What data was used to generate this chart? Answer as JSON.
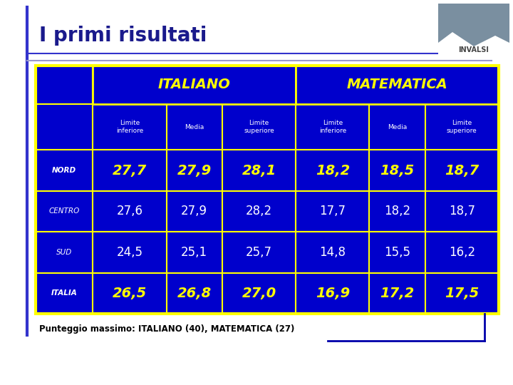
{
  "title": "I primi risultati",
  "subtitle": "Punteggio massimo: ITALIANO (40), MATEMATICA (27)",
  "col_groups": [
    "ITALIANO",
    "MATEMATICA"
  ],
  "sub_cols": [
    "Limite\ninferiore",
    "Media",
    "Limite\nsuperiore",
    "Limite\ninferiore",
    "Media",
    "Limite\nsuperiore"
  ],
  "rows": [
    {
      "label": "NORD",
      "values": [
        "27,7",
        "27,9",
        "28,1",
        "18,2",
        "18,5",
        "18,7"
      ],
      "bold": true
    },
    {
      "label": "CENTRO",
      "values": [
        "27,6",
        "27,9",
        "28,2",
        "17,7",
        "18,2",
        "18,7"
      ],
      "bold": false
    },
    {
      "label": "SUD",
      "values": [
        "24,5",
        "25,1",
        "25,7",
        "14,8",
        "15,5",
        "16,2"
      ],
      "bold": false
    },
    {
      "label": "ITALIA",
      "values": [
        "26,5",
        "26,8",
        "27,0",
        "16,9",
        "17,2",
        "17,5"
      ],
      "bold": true
    }
  ],
  "bg_color": "#0000CC",
  "border_color": "#FFFF00",
  "text_white": "#FFFFFF",
  "text_yellow": "#FFFF00",
  "title_color": "#1a1a8c",
  "page_bg": "#FFFFFF",
  "line_color": "#3333CC",
  "header_line_color": "#9999CC",
  "invalsi_bg": "#7A8FA0",
  "invalsi_text": "#FFFFFF",
  "bottom_line_color": "#0000AA"
}
